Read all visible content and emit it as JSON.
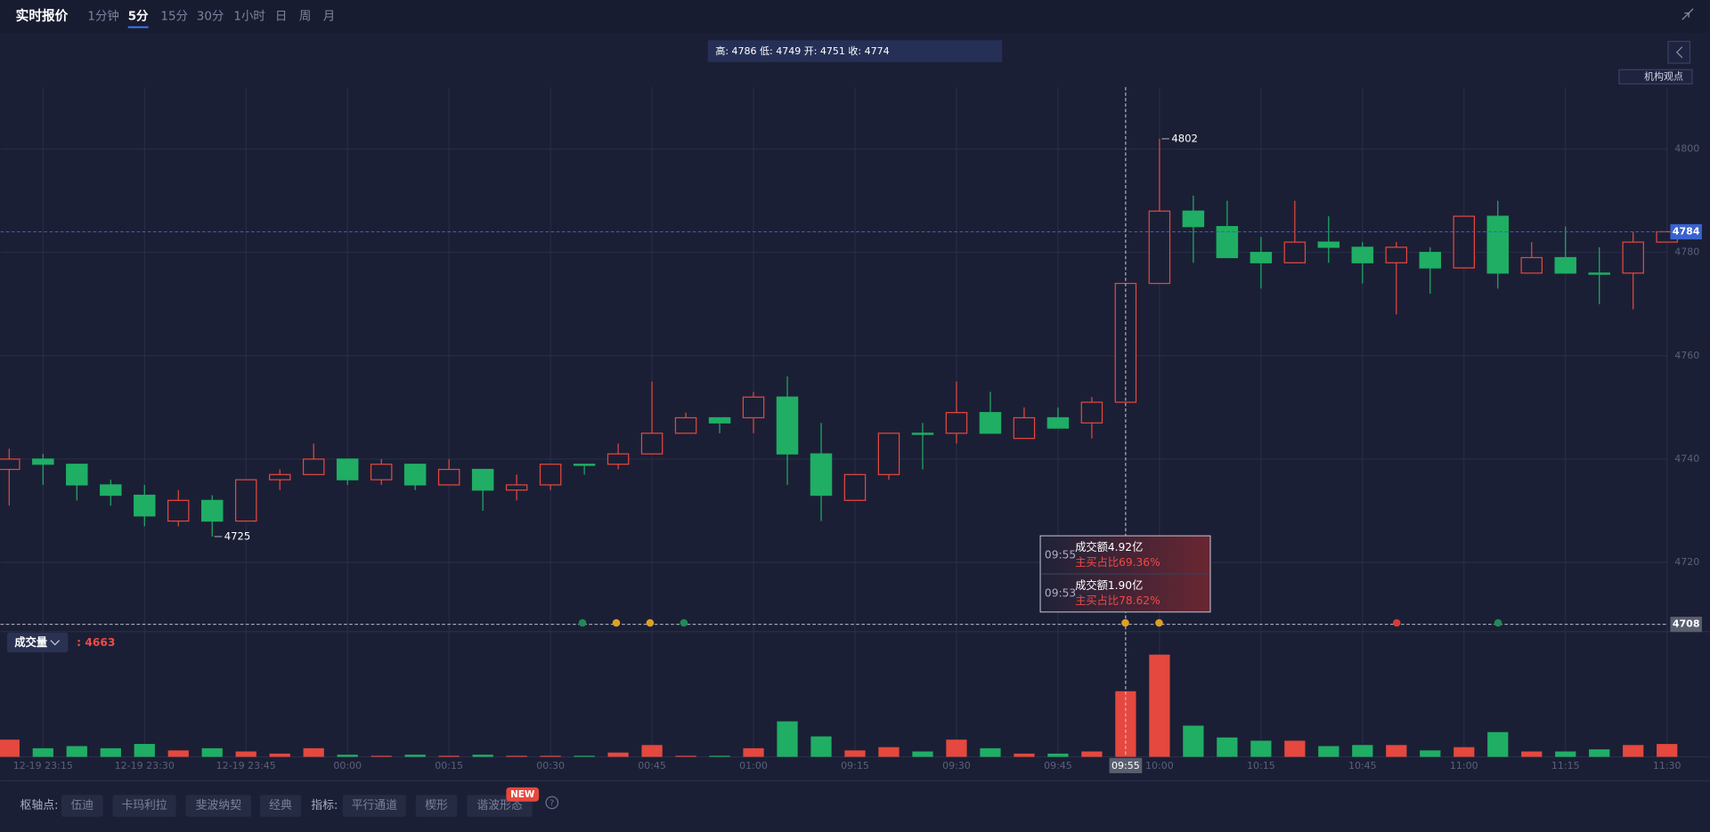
{
  "header": {
    "title": "实时报价",
    "intervals": [
      "1分钟",
      "5分",
      "15分",
      "30分",
      "1小时",
      "日",
      "周",
      "月"
    ],
    "active": "5分"
  },
  "info_bar": "高: 4786 低: 4749 开: 4751 收: 4774",
  "side_label": "机构观点",
  "chart_data": {
    "type": "candlestick",
    "categories": [
      null,
      "12-19 23:15",
      null,
      null,
      "12-19 23:30",
      null,
      null,
      "12-19 23:45",
      null,
      null,
      "00:00",
      null,
      null,
      "00:15",
      null,
      null,
      "00:30",
      null,
      null,
      "00:45",
      null,
      null,
      "01:00",
      null,
      null,
      "09:15",
      null,
      null,
      "09:30",
      null,
      null,
      "09:45",
      null,
      "09:55",
      "10:00",
      null,
      null,
      "10:15",
      null,
      null,
      "10:45",
      null,
      null,
      "11:00",
      null,
      null,
      "11:15",
      null,
      null,
      "11:30"
    ],
    "open": [
      4738,
      4740,
      4739,
      4735,
      4733,
      4728,
      4732,
      4728,
      4736,
      4737,
      4740,
      4736,
      4739,
      4735,
      4738,
      4734,
      4735,
      4739,
      4739,
      4741,
      4745,
      4748,
      4748,
      4752,
      4741,
      4732,
      4737,
      4745,
      4745,
      4749,
      4744,
      4748,
      4747,
      4751,
      4774,
      4788,
      4785,
      4780,
      4778,
      4782,
      4781,
      4778,
      4780,
      4777,
      4787,
      4776,
      4779,
      4776,
      4776,
      4782
    ],
    "high": [
      4742,
      4741,
      4739,
      4736,
      4735,
      4734,
      4733,
      4736,
      4738,
      4743,
      4740,
      4740,
      4739,
      4740,
      4738,
      4737,
      4739,
      4739,
      4743,
      4755,
      4749,
      4748,
      4753,
      4756,
      4747,
      4737,
      4745,
      4747,
      4755,
      4753,
      4750,
      4750,
      4752,
      4774,
      4802,
      4791,
      4790,
      4783,
      4790,
      4787,
      4782,
      4782,
      4781,
      4787,
      4790,
      4782,
      4785,
      4781,
      4784,
      4784
    ],
    "low": [
      4731,
      4735,
      4732,
      4731,
      4727,
      4727,
      4725,
      4728,
      4734,
      4737,
      4735,
      4735,
      4734,
      4735,
      4730,
      4732,
      4734,
      4737,
      4738,
      4741,
      4745,
      4745,
      4745,
      4735,
      4728,
      4732,
      4736,
      4738,
      4743,
      4745,
      4744,
      4746,
      4744,
      4751,
      4774,
      4778,
      4779,
      4773,
      4778,
      4778,
      4774,
      4768,
      4772,
      4777,
      4773,
      4776,
      4776,
      4770,
      4769,
      4782
    ],
    "close": [
      4740,
      4739,
      4735,
      4733,
      4729,
      4732,
      4728,
      4736,
      4737,
      4740,
      4736,
      4739,
      4735,
      4738,
      4734,
      4735,
      4739,
      4739,
      4741,
      4745,
      4748,
      4747,
      4752,
      4741,
      4733,
      4737,
      4745,
      4745,
      4749,
      4745,
      4748,
      4746,
      4751,
      4774,
      4788,
      4785,
      4779,
      4778,
      4782,
      4781,
      4778,
      4781,
      4777,
      4787,
      4776,
      4779,
      4776,
      4776,
      4782,
      4784
    ],
    "up_color": "#e5483e",
    "down_color": "#1fae64",
    "ylim": [
      4706.6,
      4812
    ],
    "yticks": [
      4720,
      4740,
      4760,
      4780,
      4800
    ],
    "grid": true,
    "max_label": 4802,
    "min_label": 4725,
    "last_price": 4784,
    "crosshair": {
      "x": "09:55",
      "y": 4708
    },
    "volume": {
      "name": "成交量",
      "readout": ": 4663",
      "values": [
        6240,
        3120,
        3900,
        3120,
        4680,
        2340,
        3120,
        1950,
        1170,
        3120,
        780,
        390,
        780,
        390,
        780,
        390,
        390,
        390,
        1560,
        4290,
        390,
        390,
        3120,
        12870,
        7410,
        2340,
        3510,
        1950,
        6240,
        3120,
        1170,
        1170,
        1950,
        23790,
        37050,
        11310,
        7020,
        5850,
        5850,
        3900,
        4290,
        4290,
        2340,
        3510,
        8970,
        1950,
        1950,
        2730,
        4290,
        4663
      ],
      "ylim": [
        0,
        37500
      ]
    }
  },
  "tooltip": [
    {
      "time": "09:55",
      "amount": "成交额4.92亿",
      "ratio": "主买占比69.36%"
    },
    {
      "time": "09:53",
      "amount": "成交额1.90亿",
      "ratio": "主买占比78.62%"
    }
  ],
  "toolbar": {
    "pivot_label": "枢轴点:",
    "pivot_buttons": [
      "伍迪",
      "卡玛利拉",
      "斐波纳契",
      "经典"
    ],
    "indicator_label": "指标:",
    "indicator_buttons": [
      "平行通道",
      "楔形",
      "谐波形态"
    ],
    "badge": "NEW",
    "help": "?"
  }
}
